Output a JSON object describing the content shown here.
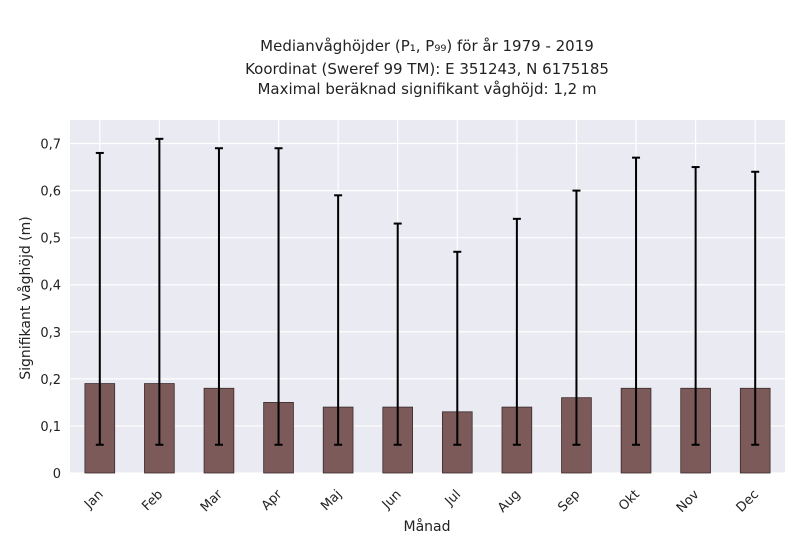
{
  "chart_data": {
    "type": "bar",
    "title_lines": [
      "Medianvåghöjder (P₁, P₉₉) för år 1979 - 2019",
      "Koordinat (Sweref 99 TM): E 351243, N 6175185",
      "Maximal beräknad signifikant våghöjd: 1,2 m"
    ],
    "xlabel": "Månad",
    "ylabel": "Signifikant våghöjd (m)",
    "categories": [
      "Jan",
      "Feb",
      "Mar",
      "Apr",
      "Maj",
      "Jun",
      "Jul",
      "Aug",
      "Sep",
      "Okt",
      "Nov",
      "Dec"
    ],
    "values": [
      0.19,
      0.19,
      0.18,
      0.15,
      0.14,
      0.14,
      0.13,
      0.14,
      0.16,
      0.18,
      0.18,
      0.18
    ],
    "p1": [
      0.06,
      0.06,
      0.06,
      0.06,
      0.06,
      0.06,
      0.06,
      0.06,
      0.06,
      0.06,
      0.06,
      0.06
    ],
    "p99": [
      0.68,
      0.71,
      0.69,
      0.69,
      0.59,
      0.53,
      0.47,
      0.54,
      0.6,
      0.67,
      0.65,
      0.64
    ],
    "ylim": [
      0,
      0.75
    ],
    "yticks": [
      0,
      0.1,
      0.2,
      0.3,
      0.4,
      0.5,
      0.6,
      0.7
    ],
    "ytick_labels": [
      "0",
      "0,1",
      "0,2",
      "0,3",
      "0,4",
      "0,5",
      "0,6",
      "0,7"
    ],
    "grid": true,
    "colors": {
      "bar": "#7d5a5a",
      "bar_edge": "#3a2a2a",
      "errorbar": "#000000",
      "plot_background": "#eaeaf2",
      "grid": "#ffffff"
    }
  }
}
